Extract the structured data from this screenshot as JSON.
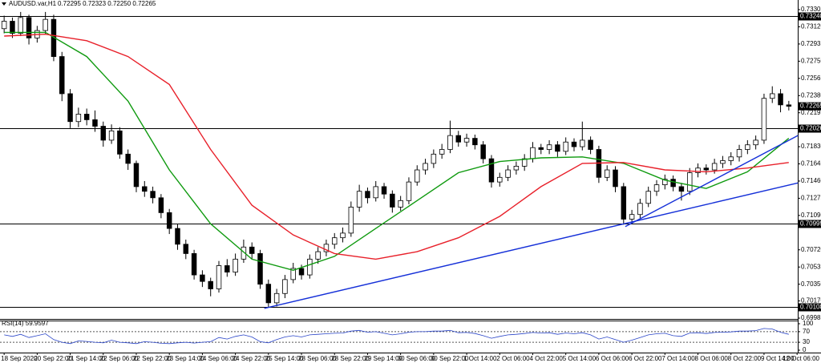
{
  "chart_data": {
    "type": "candlestick",
    "title": "AUDUSD.var,H1",
    "ohlc_text": "0.72295 0.72323 0.72250 0.72265",
    "xlim": [
      -0.5,
      95.5
    ],
    "ylim": [
      0.69985,
      0.73305
    ],
    "yticks": [
      0.73305,
      {
        "value": 0.7312,
        "label": "0.73120"
      },
      0.72935,
      {
        "value": 0.7275,
        "label": "0.72750"
      },
      0.72565,
      {
        "value": 0.7238,
        "label": "0.72380"
      },
      0.72195,
      {
        "value": 0.7183,
        "label": "0.71830"
      },
      0.71645,
      {
        "value": 0.7146,
        "label": "0.71460"
      },
      0.71275,
      {
        "value": 0.7109,
        "label": "0.71090"
      },
      {
        "value": 0.7072,
        "label": "0.70720"
      },
      0.70535,
      {
        "value": 0.7035,
        "label": "0.70350"
      },
      {
        "value": 0.7017,
        "label": "0.70170"
      },
      0.69985
    ],
    "xticks": [
      {
        "value": 0,
        "label": "18 Sep 2020"
      },
      {
        "value": 4,
        "label": "20 Sep 22:00"
      },
      {
        "value": 8,
        "label": "21 Sep 14:00"
      },
      {
        "value": 12,
        "label": "22 Sep 06:00"
      },
      {
        "value": 16,
        "label": "22 Sep 22:00"
      },
      {
        "value": 20,
        "label": "23 Sep 14:00"
      },
      {
        "value": 24,
        "label": "24 Sep 06:00"
      },
      {
        "value": 28,
        "label": "24 Sep 22:00"
      },
      {
        "value": 32,
        "label": "25 Sep 14:00"
      },
      {
        "value": 36,
        "label": "28 Sep 06:00"
      },
      {
        "value": 40,
        "label": "28 Sep 22:00"
      },
      {
        "value": 44,
        "label": "29 Sep 14:00"
      },
      {
        "value": 48,
        "label": "30 Sep 06:00"
      },
      {
        "value": 52,
        "label": "30 Sep 22:00"
      },
      {
        "value": 56,
        "label": "1 Oct 14:00"
      },
      {
        "value": 60,
        "label": "2 Oct 06:00"
      },
      {
        "value": 64,
        "label": "4 Oct 22:00"
      },
      {
        "value": 68,
        "label": "5 Oct 14:00"
      },
      {
        "value": 72,
        "label": "6 Oct 06:00"
      },
      {
        "value": 76,
        "label": "6 Oct 22:00"
      },
      {
        "value": 80,
        "label": "7 Oct 14:00"
      },
      {
        "value": 84,
        "label": "8 Oct 06:00"
      },
      {
        "value": 88,
        "label": "8 Oct 22:00"
      },
      {
        "value": 92,
        "label": "9 Oct 14:00"
      },
      {
        "value": 96,
        "label": "12 Oct 06:00"
      }
    ],
    "candles": {
      "open": [
        0.731,
        0.7318,
        0.7305,
        0.7322,
        0.73,
        0.7308,
        0.732,
        0.728,
        0.724,
        0.721,
        0.7218,
        0.7212,
        0.7205,
        0.719,
        0.72,
        0.7175,
        0.7165,
        0.714,
        0.7135,
        0.7128,
        0.7112,
        0.7095,
        0.7078,
        0.7068,
        0.7045,
        0.7038,
        0.703,
        0.7055,
        0.7048,
        0.7062,
        0.7075,
        0.7068,
        0.7035,
        0.7015,
        0.7025,
        0.704,
        0.7052,
        0.7045,
        0.7062,
        0.707,
        0.7078,
        0.7085,
        0.709,
        0.7118,
        0.7135,
        0.7128,
        0.714,
        0.7132,
        0.7118,
        0.7125,
        0.7145,
        0.7158,
        0.7165,
        0.7175,
        0.718,
        0.7195,
        0.7188,
        0.7192,
        0.7185,
        0.717,
        0.7145,
        0.715,
        0.7158,
        0.7162,
        0.717,
        0.7182,
        0.718,
        0.7185,
        0.7178,
        0.7188,
        0.7183,
        0.719,
        0.718,
        0.715,
        0.7158,
        0.714,
        0.7105,
        0.711,
        0.7122,
        0.7135,
        0.7142,
        0.7148,
        0.714,
        0.7135,
        0.7155,
        0.716,
        0.7158,
        0.7165,
        0.7168,
        0.7172,
        0.718,
        0.7185,
        0.719,
        0.7235,
        0.724,
        0.7228
      ],
      "high": [
        0.7324,
        0.7322,
        0.7328,
        0.7325,
        0.7313,
        0.7328,
        0.7325,
        0.7285,
        0.7245,
        0.7225,
        0.7224,
        0.7222,
        0.721,
        0.7207,
        0.7204,
        0.718,
        0.7168,
        0.7146,
        0.714,
        0.7132,
        0.7116,
        0.71,
        0.7083,
        0.7072,
        0.705,
        0.7042,
        0.706,
        0.7062,
        0.7068,
        0.7083,
        0.708,
        0.7072,
        0.704,
        0.703,
        0.7045,
        0.7058,
        0.7056,
        0.7067,
        0.7075,
        0.7083,
        0.709,
        0.7096,
        0.7124,
        0.7142,
        0.7139,
        0.7146,
        0.7144,
        0.7136,
        0.713,
        0.715,
        0.7163,
        0.717,
        0.718,
        0.7186,
        0.7211,
        0.72,
        0.7197,
        0.7196,
        0.7189,
        0.7174,
        0.7155,
        0.7163,
        0.7167,
        0.7175,
        0.7188,
        0.7186,
        0.719,
        0.7189,
        0.7193,
        0.7192,
        0.721,
        0.7194,
        0.7184,
        0.7163,
        0.7162,
        0.7144,
        0.7115,
        0.7127,
        0.714,
        0.7147,
        0.7153,
        0.7152,
        0.7144,
        0.716,
        0.7165,
        0.7164,
        0.717,
        0.7173,
        0.7177,
        0.7185,
        0.719,
        0.7195,
        0.724,
        0.7248,
        0.7245,
        0.72323
      ],
      "low": [
        0.7305,
        0.73,
        0.7302,
        0.7293,
        0.7295,
        0.7304,
        0.7275,
        0.7232,
        0.7203,
        0.7204,
        0.7206,
        0.7199,
        0.7183,
        0.7186,
        0.717,
        0.7158,
        0.7134,
        0.7129,
        0.7122,
        0.7106,
        0.7089,
        0.7072,
        0.7062,
        0.704,
        0.7032,
        0.7022,
        0.7026,
        0.7043,
        0.7044,
        0.7058,
        0.7062,
        0.703,
        0.701,
        0.7011,
        0.702,
        0.7036,
        0.704,
        0.7041,
        0.7057,
        0.7065,
        0.7073,
        0.708,
        0.7086,
        0.7113,
        0.7122,
        0.7124,
        0.7127,
        0.7112,
        0.7114,
        0.7121,
        0.7141,
        0.7153,
        0.716,
        0.717,
        0.7176,
        0.7183,
        0.7183,
        0.718,
        0.7165,
        0.7139,
        0.714,
        0.7146,
        0.7153,
        0.7157,
        0.7166,
        0.7175,
        0.7175,
        0.7172,
        0.7174,
        0.7178,
        0.7179,
        0.7175,
        0.7144,
        0.7146,
        0.7134,
        0.7099,
        0.71,
        0.7106,
        0.7118,
        0.713,
        0.7137,
        0.7135,
        0.7125,
        0.7131,
        0.715,
        0.7153,
        0.7154,
        0.716,
        0.7163,
        0.7167,
        0.7175,
        0.718,
        0.7186,
        0.723,
        0.722,
        0.7222
      ],
      "close": [
        0.7318,
        0.7305,
        0.7322,
        0.73,
        0.7308,
        0.732,
        0.728,
        0.724,
        0.721,
        0.7218,
        0.7212,
        0.7205,
        0.719,
        0.72,
        0.7175,
        0.7165,
        0.714,
        0.7135,
        0.7128,
        0.7112,
        0.7095,
        0.7078,
        0.7068,
        0.7045,
        0.7038,
        0.703,
        0.7055,
        0.7048,
        0.7062,
        0.7075,
        0.7068,
        0.7035,
        0.7015,
        0.7025,
        0.704,
        0.7052,
        0.7045,
        0.7062,
        0.707,
        0.7078,
        0.7085,
        0.709,
        0.7118,
        0.7135,
        0.7128,
        0.714,
        0.7132,
        0.7118,
        0.7125,
        0.7145,
        0.7158,
        0.7165,
        0.7175,
        0.718,
        0.7195,
        0.7188,
        0.7192,
        0.7185,
        0.717,
        0.7145,
        0.715,
        0.7158,
        0.7162,
        0.717,
        0.7182,
        0.718,
        0.7185,
        0.7178,
        0.7188,
        0.7183,
        0.719,
        0.718,
        0.715,
        0.7158,
        0.714,
        0.7105,
        0.711,
        0.7122,
        0.7135,
        0.7142,
        0.7148,
        0.714,
        0.7135,
        0.7155,
        0.716,
        0.7158,
        0.7165,
        0.7168,
        0.7172,
        0.718,
        0.7185,
        0.719,
        0.7235,
        0.724,
        0.7228,
        0.72265
      ]
    },
    "series": [
      {
        "color": "#0f9a0f",
        "x": [
          0,
          5,
          10,
          15,
          20,
          25,
          30,
          35,
          40,
          45,
          50,
          55,
          60,
          65,
          70,
          75,
          80,
          85,
          90,
          95
        ],
        "values": [
          0.7306,
          0.7306,
          0.728,
          0.7232,
          0.7158,
          0.71,
          0.7062,
          0.705,
          0.7065,
          0.7095,
          0.7125,
          0.7155,
          0.7167,
          0.7171,
          0.7172,
          0.7165,
          0.7147,
          0.7138,
          0.7156,
          0.7192
        ]
      },
      {
        "color": "#e8202a",
        "x": [
          0,
          5,
          10,
          15,
          20,
          25,
          30,
          35,
          40,
          45,
          50,
          55,
          60,
          65,
          70,
          75,
          80,
          85,
          90,
          95
        ],
        "values": [
          0.7302,
          0.7304,
          0.7297,
          0.728,
          0.725,
          0.718,
          0.712,
          0.7088,
          0.7068,
          0.7062,
          0.707,
          0.7085,
          0.7108,
          0.714,
          0.7165,
          0.7166,
          0.7158,
          0.7156,
          0.716,
          0.7166
        ]
      }
    ],
    "trendlines": [
      {
        "color": "#1530d8",
        "x": [
          31.5,
          96.1
        ],
        "values": [
          0.7009,
          0.7144
        ]
      },
      {
        "color": "#1530d8",
        "x": [
          75.2,
          96.1
        ],
        "values": [
          0.7097,
          0.7195
        ]
      }
    ],
    "levels": [
      {
        "value": 0.7324,
        "label": "0.73240"
      },
      0.72026,
      0.70999,
      0.70108
    ],
    "rsi": {
      "label": "RSI(14) 59.9597",
      "color": "#2a45c8",
      "ylim": [
        0,
        100
      ],
      "yticks": [
        100,
        70,
        30,
        0
      ],
      "levels": [
        70,
        30
      ],
      "values": [
        58,
        52,
        60,
        48,
        55,
        62,
        40,
        30,
        25,
        35,
        33,
        30,
        28,
        38,
        30,
        28,
        25,
        32,
        30,
        26,
        25,
        28,
        30,
        27,
        30,
        32,
        48,
        42,
        52,
        58,
        50,
        32,
        28,
        40,
        50,
        55,
        50,
        58,
        60,
        62,
        64,
        65,
        72,
        75,
        68,
        70,
        64,
        58,
        62,
        68,
        70,
        70,
        72,
        72,
        75,
        66,
        67,
        63,
        55,
        45,
        52,
        58,
        60,
        63,
        67,
        65,
        66,
        60,
        65,
        62,
        66,
        58,
        42,
        50,
        40,
        30,
        38,
        48,
        58,
        62,
        64,
        55,
        52,
        65,
        66,
        63,
        67,
        68,
        69,
        72,
        72,
        74,
        82,
        80,
        68,
        60
      ]
    }
  }
}
